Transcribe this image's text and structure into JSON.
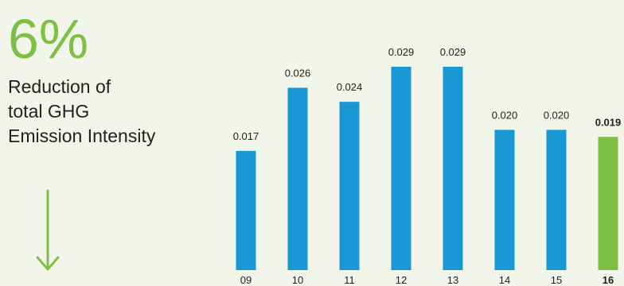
{
  "colors": {
    "background": "#f2f5ea",
    "accent_green": "#7ebf45",
    "bar_blue": "#1a98d5",
    "text": "#222222"
  },
  "kpi": {
    "value": "6%",
    "description_lines": [
      "Reduction of",
      "total GHG",
      "Emission Intensity"
    ],
    "arrow_icon": "down-arrow-icon"
  },
  "chart_data": {
    "type": "bar",
    "categories": [
      "09",
      "10",
      "11",
      "12",
      "13",
      "14",
      "15",
      "16"
    ],
    "values": [
      0.017,
      0.026,
      0.024,
      0.029,
      0.029,
      0.02,
      0.02,
      0.019
    ],
    "data_labels": [
      "0.017",
      "0.026",
      "0.024",
      "0.029",
      "0.029",
      "0.020",
      "0.020",
      "0.019"
    ],
    "highlight_index": 7,
    "title": "",
    "xlabel": "",
    "ylabel": "",
    "ylim": [
      0,
      0.03
    ],
    "grid": false,
    "legend": "none"
  }
}
